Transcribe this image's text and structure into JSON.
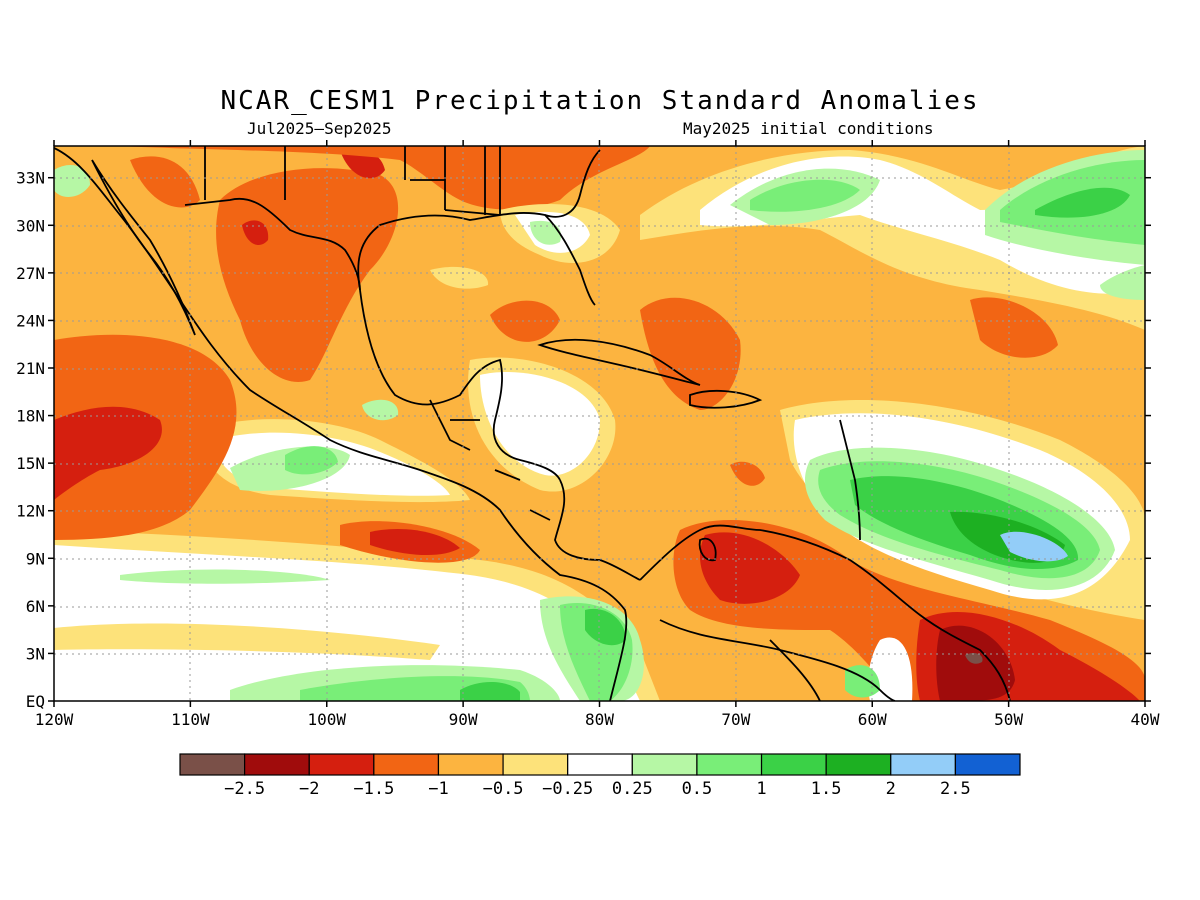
{
  "title": "NCAR_CESM1 Precipitation Standard Anomalies",
  "subtitle_left": "Jul2025–Sep2025",
  "subtitle_right": "May2025 initial conditions",
  "map": {
    "lat_labels": [
      "33N",
      "30N",
      "27N",
      "24N",
      "21N",
      "18N",
      "15N",
      "12N",
      "9N",
      "6N",
      "3N",
      "EQ"
    ],
    "lat_values": [
      33,
      30,
      27,
      24,
      21,
      18,
      15,
      12,
      9,
      6,
      3,
      0
    ],
    "lon_labels": [
      "120W",
      "110W",
      "100W",
      "90W",
      "80W",
      "70W",
      "60W",
      "50W",
      "40W"
    ],
    "lon_values": [
      -120,
      -110,
      -100,
      -90,
      -80,
      -70,
      -60,
      -50,
      -40
    ],
    "lat_range": [
      0,
      35
    ],
    "lon_range": [
      -120,
      -40
    ],
    "grid": true
  },
  "colorbar": {
    "labels": [
      "−2.5",
      "−2",
      "−1.5",
      "−1",
      "−0.5",
      "−0.25",
      "0.25",
      "0.5",
      "1",
      "1.5",
      "2",
      "2.5"
    ],
    "colors": [
      "#7a5048",
      "#a00c0c",
      "#d51f0f",
      "#f26514",
      "#fcb440",
      "#fde27a",
      "#ffffff",
      "#b6f7a5",
      "#79ee78",
      "#3bd147",
      "#1db022",
      "#93cdf8",
      "#1261d3"
    ]
  },
  "colors": {
    "orange_light": "#fcb440",
    "yellow": "#fde27a",
    "orange": "#f26514",
    "red": "#d51f0f",
    "dark_red": "#a00c0c",
    "green_light": "#b6f7a5",
    "green": "#79ee78",
    "green_mid": "#3bd147",
    "green_dark": "#1db022",
    "light_blue": "#93cdf8"
  }
}
